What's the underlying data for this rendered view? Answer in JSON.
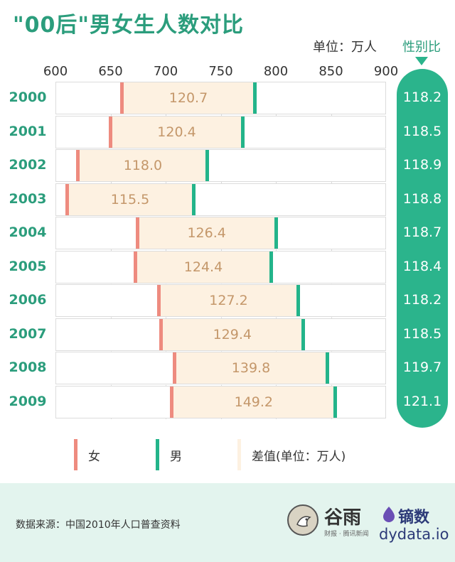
{
  "header": {
    "title": "\"00后\"男女生人数对比",
    "unit": "单位：万人",
    "ratio_label": "性别比"
  },
  "colors": {
    "female": "#ee8b7f",
    "male": "#23b48a",
    "diff": "#fdf1e1",
    "accent": "#2bb48c"
  },
  "chart_data": {
    "type": "bar",
    "title": "\"00后\"男女生人数对比",
    "unit": "单位：万人",
    "xlim": [
      600,
      900
    ],
    "x_ticks": [
      "600",
      "650",
      "700",
      "750",
      "800",
      "850",
      "900"
    ],
    "categories": [
      "2000",
      "2001",
      "2002",
      "2003",
      "2004",
      "2005",
      "2006",
      "2007",
      "2008",
      "2009"
    ],
    "series": [
      {
        "name": "女",
        "values": [
          660.3,
          649.8,
          620.3,
          610.0,
          674.0,
          672.0,
          693.5,
          695.8,
          707.5,
          705.3
        ]
      },
      {
        "name": "男",
        "values": [
          781.0,
          770.2,
          738.3,
          725.5,
          800.4,
          796.4,
          820.7,
          825.2,
          847.3,
          854.5
        ]
      }
    ],
    "difference": {
      "name": "差值(单位：万人)",
      "values": [
        120.7,
        120.4,
        118.0,
        115.5,
        126.4,
        124.4,
        127.2,
        129.4,
        139.8,
        149.2
      ]
    },
    "sex_ratio": {
      "label": "性别比",
      "values": [
        118.2,
        118.5,
        118.9,
        118.8,
        118.7,
        118.4,
        118.2,
        118.5,
        119.7,
        121.1
      ]
    }
  },
  "legend": {
    "female": "女",
    "male": "男",
    "diff": "差值(单位：万人)"
  },
  "footer": {
    "source": "数据来源：中国2010年人口普查资料",
    "logo1_name": "谷雨",
    "logo1_sub": "财报 · 腾讯新闻",
    "logo2_name": "镝数",
    "logo2_site": "dydata.io"
  }
}
